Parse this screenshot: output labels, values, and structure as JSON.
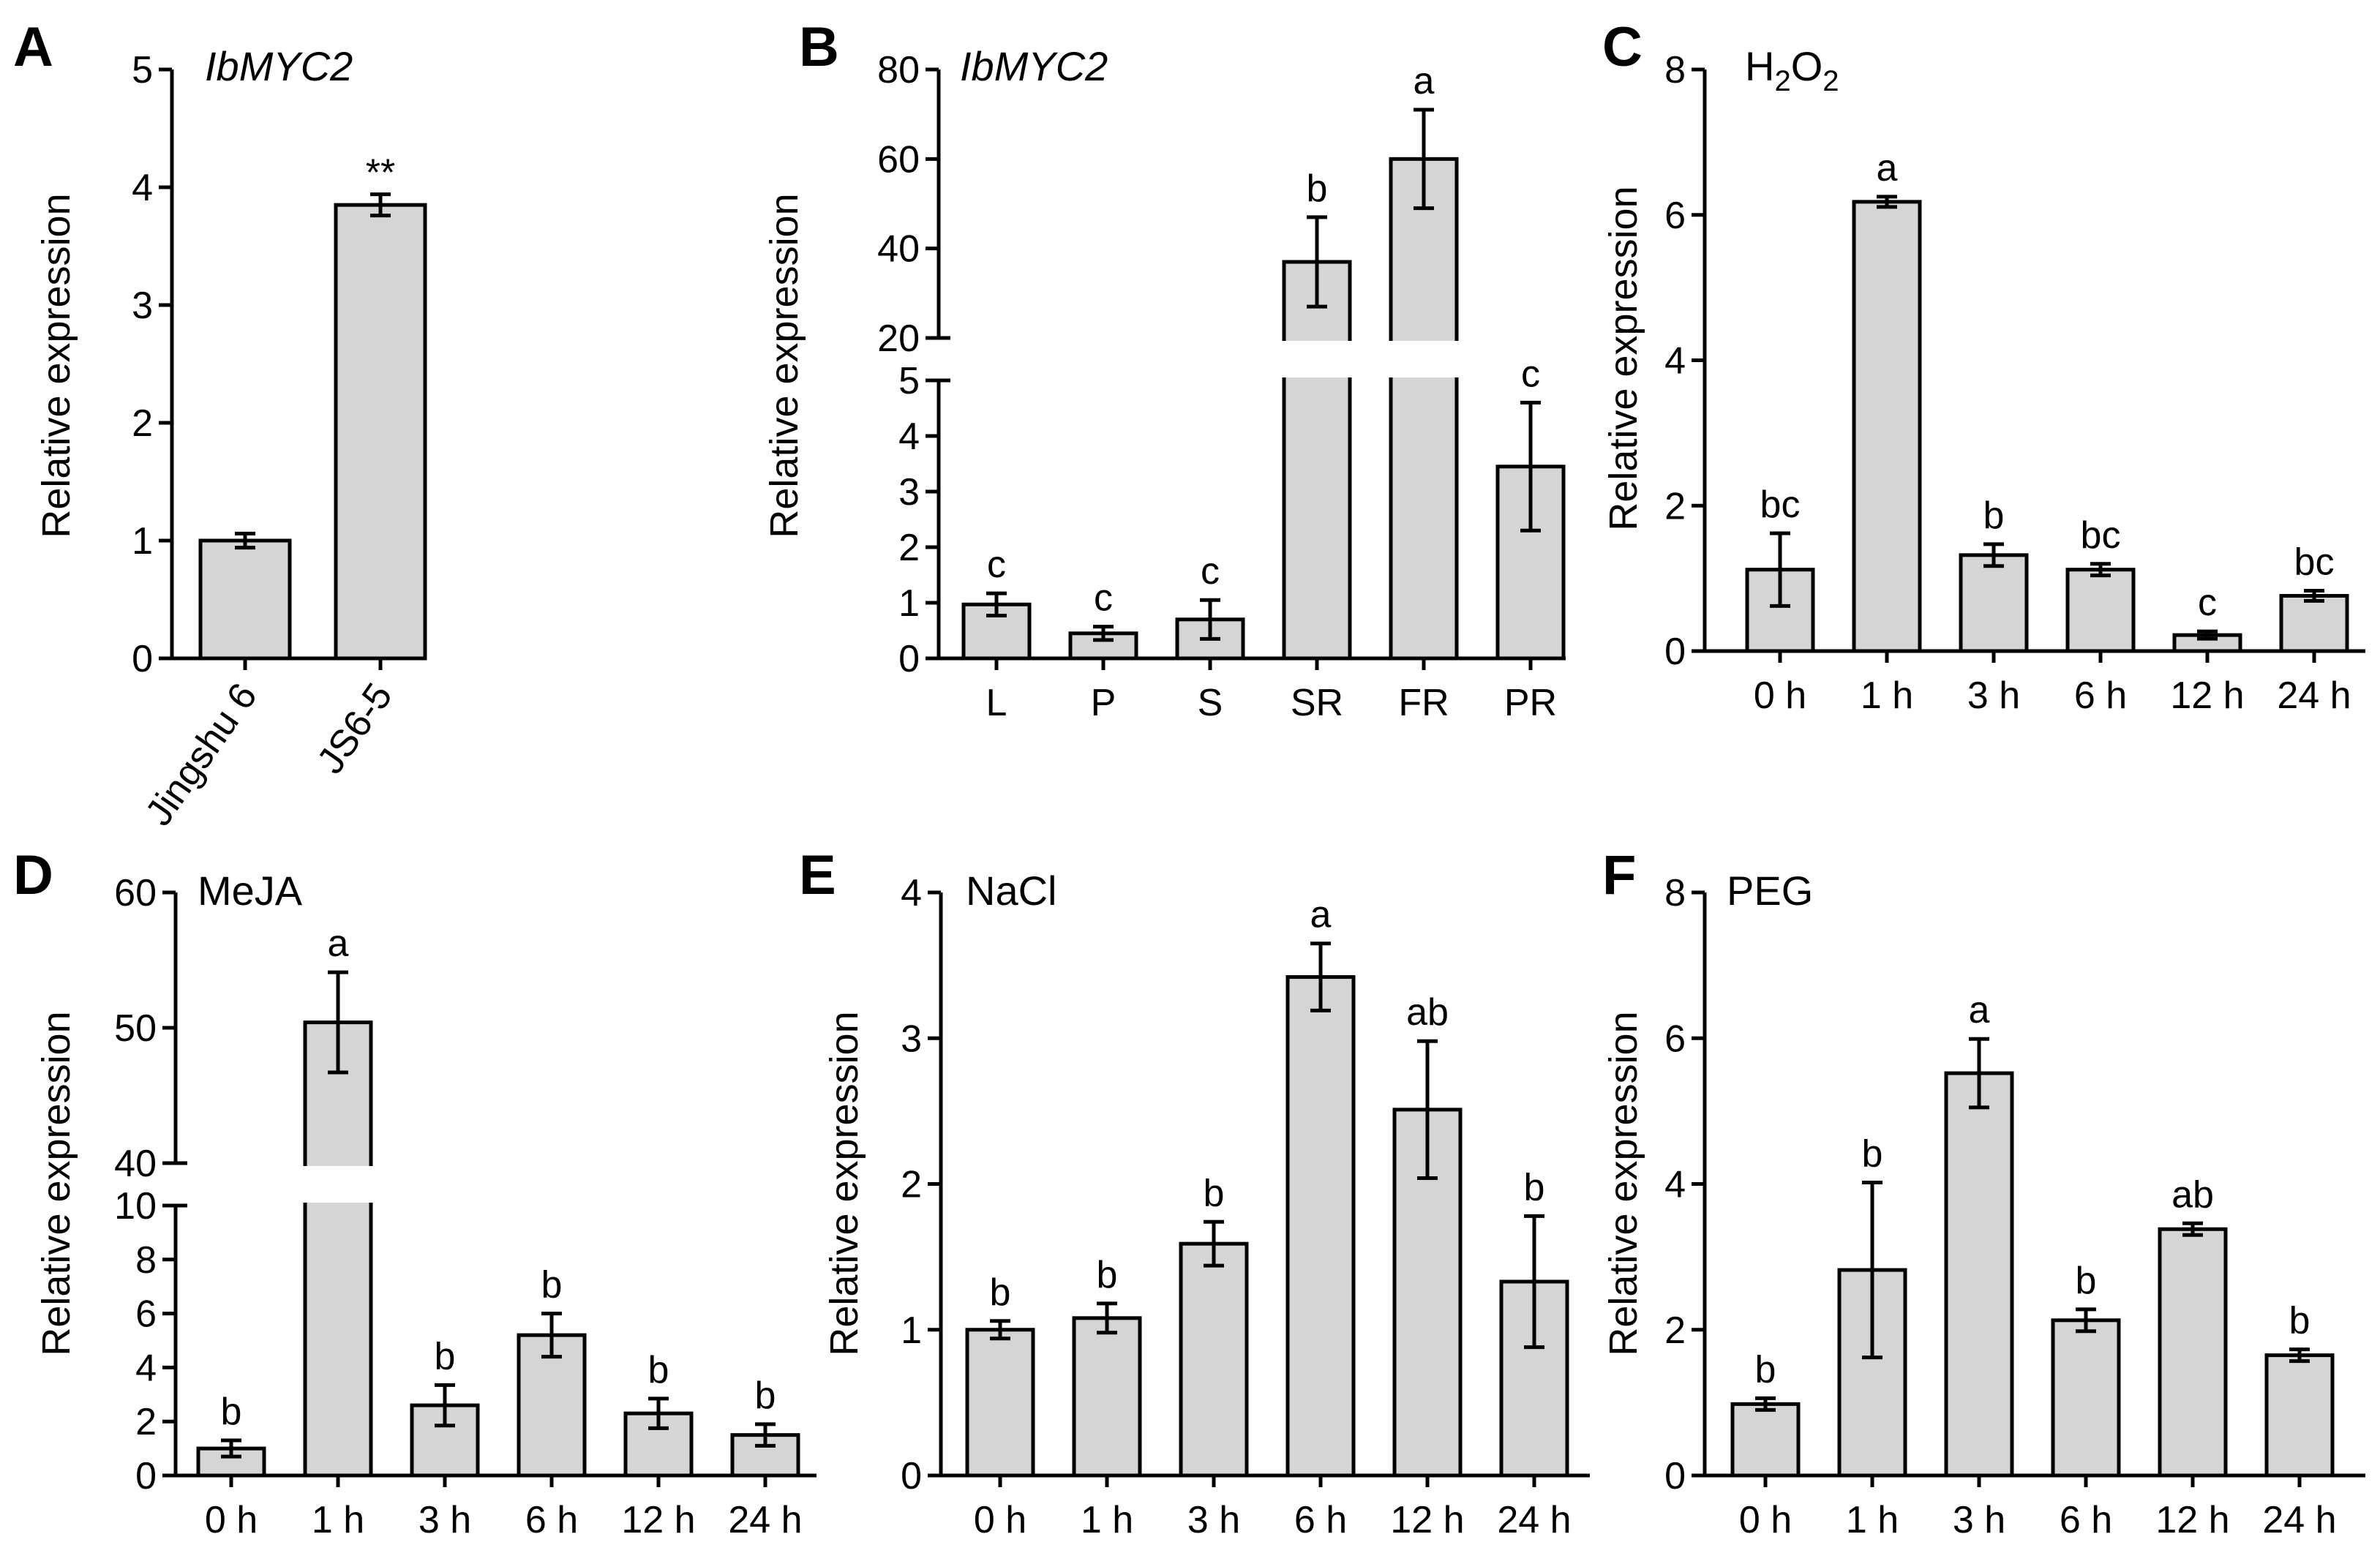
{
  "figure": {
    "panels": [
      "A",
      "B",
      "C",
      "D",
      "E",
      "F"
    ],
    "y_axis_label": "Relative expression"
  },
  "chart_data": [
    {
      "panel": "A",
      "type": "bar",
      "title": "IbMYC2",
      "title_italic": true,
      "ylabel": "Relative expression",
      "categories": [
        "Jingshu 6",
        "JS6-5"
      ],
      "values": [
        1.0,
        3.85
      ],
      "errors": [
        0.06,
        0.09
      ],
      "labels": [
        "",
        "**"
      ],
      "ylim": [
        0,
        5
      ],
      "yticks": [
        0,
        1,
        2,
        3,
        4,
        5
      ],
      "rotate_xticks": true
    },
    {
      "panel": "B",
      "type": "bar",
      "title": "IbMYC2",
      "title_italic": true,
      "ylabel": "Relative expression",
      "categories": [
        "L",
        "P",
        "S",
        "SR",
        "FR",
        "PR"
      ],
      "values": [
        0.97,
        0.45,
        0.7,
        37,
        60,
        3.45
      ],
      "errors": [
        0.2,
        0.12,
        0.35,
        10,
        11,
        1.15
      ],
      "labels": [
        "c",
        "c",
        "c",
        "b",
        "a",
        "c"
      ],
      "broken_axis": {
        "lower": [
          0,
          5
        ],
        "upper": [
          20,
          80
        ],
        "lower_ticks": [
          0,
          1,
          2,
          3,
          4,
          5
        ],
        "upper_ticks": [
          20,
          40,
          60,
          80
        ]
      }
    },
    {
      "panel": "C",
      "type": "bar",
      "title": "H2O2",
      "title_html": "H₂O₂",
      "ylabel": "Relative expression",
      "categories": [
        "0 h",
        "1 h",
        "3 h",
        "6 h",
        "12 h",
        "24 h"
      ],
      "values": [
        1.12,
        6.18,
        1.32,
        1.12,
        0.22,
        0.76
      ],
      "errors": [
        0.5,
        0.07,
        0.15,
        0.08,
        0.05,
        0.07
      ],
      "labels": [
        "bc",
        "a",
        "b",
        "bc",
        "c",
        "bc"
      ],
      "ylim": [
        0,
        8
      ],
      "yticks": [
        0,
        2,
        4,
        6,
        8
      ]
    },
    {
      "panel": "D",
      "type": "bar",
      "title": "MeJA",
      "ylabel": "Relative expression",
      "categories": [
        "0 h",
        "1 h",
        "3 h",
        "6 h",
        "12 h",
        "24 h"
      ],
      "values": [
        1.0,
        50.4,
        2.6,
        5.2,
        2.3,
        1.5
      ],
      "errors": [
        0.3,
        3.7,
        0.75,
        0.8,
        0.55,
        0.4
      ],
      "labels": [
        "b",
        "a",
        "b",
        "b",
        "b",
        "b"
      ],
      "broken_axis": {
        "lower": [
          0,
          10
        ],
        "upper": [
          40,
          60
        ],
        "lower_ticks": [
          0,
          2,
          4,
          6,
          8,
          10
        ],
        "upper_ticks": [
          40,
          50,
          60
        ]
      }
    },
    {
      "panel": "E",
      "type": "bar",
      "title": "NaCl",
      "ylabel": "Relative expression",
      "categories": [
        "0 h",
        "1 h",
        "3 h",
        "6 h",
        "12 h",
        "24 h"
      ],
      "values": [
        1.0,
        1.08,
        1.59,
        3.42,
        2.51,
        1.33
      ],
      "errors": [
        0.06,
        0.1,
        0.15,
        0.23,
        0.47,
        0.45
      ],
      "labels": [
        "b",
        "b",
        "b",
        "a",
        "ab",
        "b"
      ],
      "ylim": [
        0,
        4
      ],
      "yticks": [
        0,
        1,
        2,
        3,
        4
      ]
    },
    {
      "panel": "F",
      "type": "bar",
      "title": "PEG",
      "ylabel": "Relative expression",
      "categories": [
        "0 h",
        "1 h",
        "3 h",
        "6 h",
        "12 h",
        "24 h"
      ],
      "values": [
        0.98,
        2.82,
        5.52,
        2.13,
        3.38,
        1.65
      ],
      "errors": [
        0.08,
        1.2,
        0.47,
        0.15,
        0.08,
        0.08
      ],
      "labels": [
        "b",
        "b",
        "a",
        "b",
        "ab",
        "b"
      ],
      "ylim": [
        0,
        8
      ],
      "yticks": [
        0,
        2,
        4,
        6,
        8
      ]
    }
  ]
}
